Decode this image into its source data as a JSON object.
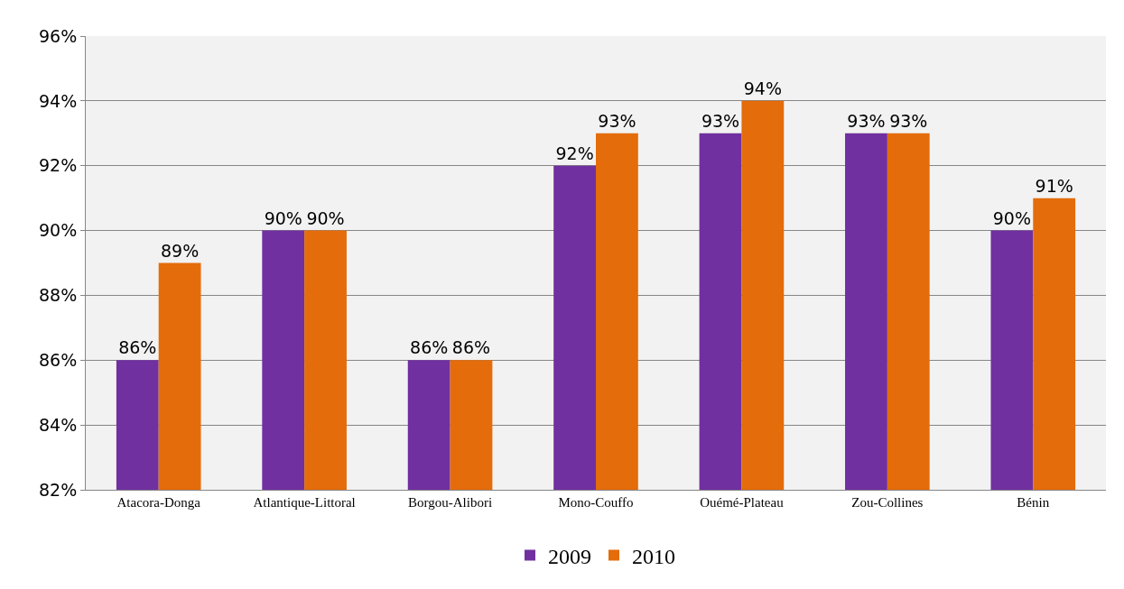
{
  "chart_data": {
    "type": "bar",
    "categories": [
      "Atacora-Donga",
      "Atlantique-Littoral",
      "Borgou-Alibori",
      "Mono-Couffo",
      "Ouémé-Plateau",
      "Zou-Collines",
      "Bénin"
    ],
    "series": [
      {
        "name": "2009",
        "color": "#7030a0",
        "values": [
          86,
          90,
          86,
          92,
          93,
          93,
          90
        ],
        "value_labels": [
          "86%",
          "90%",
          "86%",
          "92%",
          "93%",
          "93%",
          "90%"
        ]
      },
      {
        "name": "2010",
        "color": "#e46c0a",
        "values": [
          89,
          90,
          86,
          93,
          94,
          93,
          91
        ],
        "value_labels": [
          "89%",
          "90%",
          "86%",
          "93%",
          "94%",
          "93%",
          "91%"
        ]
      }
    ],
    "ylim": [
      82,
      96
    ],
    "yticks": [
      {
        "value": 82,
        "label": "82%"
      },
      {
        "value": 84,
        "label": "84%"
      },
      {
        "value": 86,
        "label": "86%"
      },
      {
        "value": 88,
        "label": "88%"
      },
      {
        "value": 90,
        "label": "90%"
      },
      {
        "value": 92,
        "label": "92%"
      },
      {
        "value": 94,
        "label": "94%"
      },
      {
        "value": 96,
        "label": "96%"
      }
    ],
    "grid": "y",
    "legend": "bottom"
  }
}
